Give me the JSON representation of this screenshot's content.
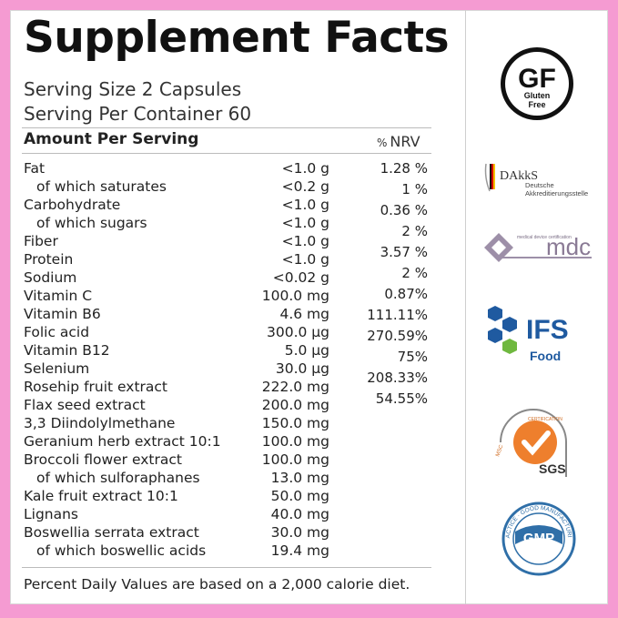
{
  "title": "Supplement Facts",
  "serving_size": "Serving Size 2 Capsules",
  "servings_per_container": "Serving Per Container 60",
  "header": {
    "amount_label": "Amount Per Serving",
    "nrv_pct": "%",
    "nrv_label": "NRV"
  },
  "nutrients": [
    {
      "name": "Fat",
      "amount": "<1.0 g",
      "sub": false
    },
    {
      "name": "of which saturates",
      "amount": "<0.2 g",
      "sub": true
    },
    {
      "name": "Carbohydrate",
      "amount": "<1.0 g",
      "sub": false
    },
    {
      "name": "of which sugars",
      "amount": "<1.0 g",
      "sub": true
    },
    {
      "name": "Fiber",
      "amount": "<1.0 g",
      "sub": false
    },
    {
      "name": "Protein",
      "amount": "<1.0 g",
      "sub": false
    },
    {
      "name": "Sodium",
      "amount": "<0.02 g",
      "sub": false
    },
    {
      "name": "Vitamin C",
      "amount": "100.0 mg",
      "sub": false
    },
    {
      "name": "Vitamin B6",
      "amount": "4.6 mg",
      "sub": false
    },
    {
      "name": "Folic acid",
      "amount": "300.0 µg",
      "sub": false
    },
    {
      "name": "Vitamin B12",
      "amount": "5.0 µg",
      "sub": false
    },
    {
      "name": "Selenium",
      "amount": "30.0 µg",
      "sub": false
    },
    {
      "name": "Rosehip fruit extract",
      "amount": "222.0 mg",
      "sub": false
    },
    {
      "name": "Flax seed extract",
      "amount": "200.0 mg",
      "sub": false
    },
    {
      "name": "3,3 Diindolylmethane",
      "amount": "150.0 mg",
      "sub": false
    },
    {
      "name": "Geranium herb extract 10:1",
      "amount": "100.0 mg",
      "sub": false
    },
    {
      "name": "Broccoli flower extract",
      "amount": "100.0 mg",
      "sub": false
    },
    {
      "name": "of which sulforaphanes",
      "amount": "13.0 mg",
      "sub": true
    },
    {
      "name": "Kale fruit extract 10:1",
      "amount": "50.0 mg",
      "sub": false
    },
    {
      "name": "Lignans",
      "amount": "40.0 mg",
      "sub": false
    },
    {
      "name": "Boswellia serrata extract",
      "amount": "30.0 mg",
      "sub": false
    },
    {
      "name": "of which boswellic acids",
      "amount": "19.4 mg",
      "sub": true
    }
  ],
  "nrv_values": [
    "1.28 %",
    "1 %",
    "0.36 %",
    "2 %",
    "3.57 %",
    "2 %",
    "0.87%",
    "111.11%",
    "270.59%",
    "75%",
    "208.33%",
    "54.55%"
  ],
  "footer": "Percent Daily Values are based on a 2,000 calorie diet.",
  "logos": {
    "gf": {
      "big": "GF",
      "line1": "Gluten",
      "line2": "Free"
    },
    "dakks": {
      "name": "DAkkS",
      "line1": "Deutsche",
      "line2": "Akkreditierungsstelle"
    },
    "mdc": {
      "small": "medical device certification",
      "name": "mdc"
    },
    "ifs": {
      "name": "IFS",
      "sub": "Food"
    },
    "sgs": {
      "ring": "CERTIFICATION",
      "side": "MSC",
      "name": "SGS"
    },
    "gmp": {
      "ring": "PRACTICE · GOOD MANUFACTURING",
      "name": "GMP"
    }
  },
  "colors": {
    "border": "#f59bd2",
    "ifs_blue": "#1f5aa0",
    "ifs_green": "#6fb83f",
    "sgs_orange": "#ee7f2d",
    "mdc_purple": "#8a7a95",
    "gmp_blue": "#2f6fa8"
  }
}
